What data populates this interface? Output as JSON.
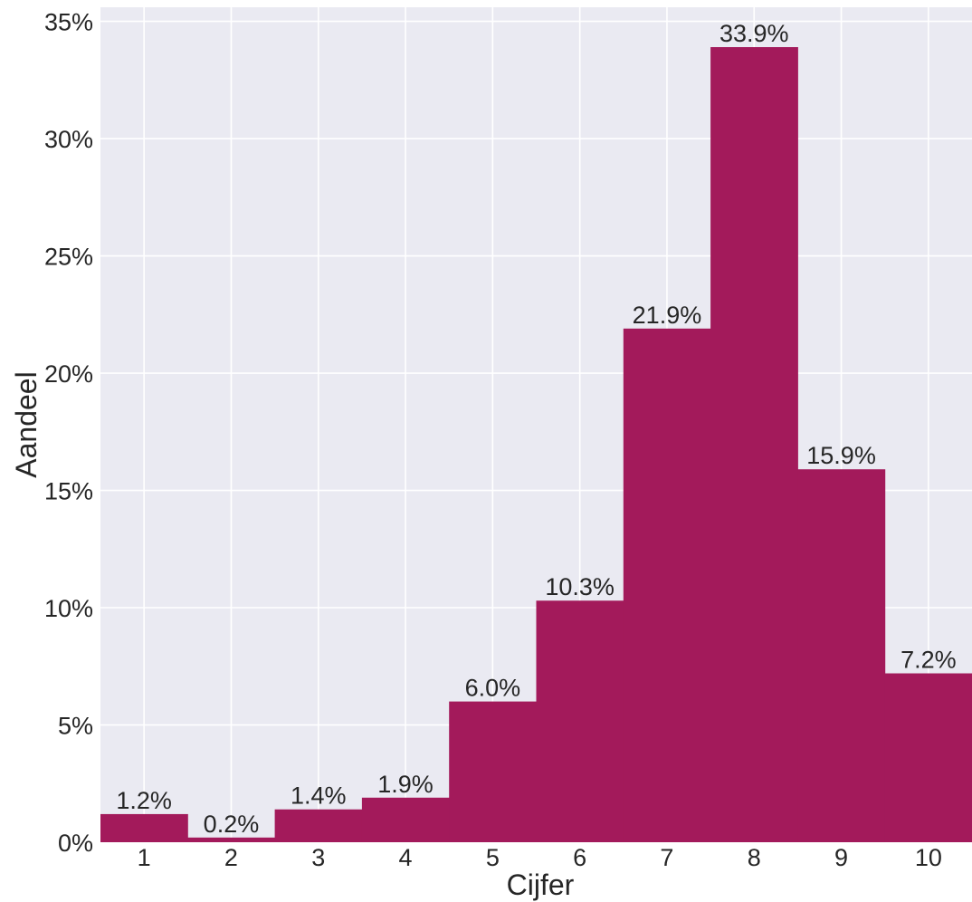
{
  "chart_data": {
    "type": "bar",
    "categories": [
      "1",
      "2",
      "3",
      "4",
      "5",
      "6",
      "7",
      "8",
      "9",
      "10"
    ],
    "values": [
      1.2,
      0.2,
      1.4,
      1.9,
      6.0,
      10.3,
      21.9,
      33.9,
      15.9,
      7.2
    ],
    "value_labels": [
      "1.2%",
      "0.2%",
      "1.4%",
      "1.9%",
      "6.0%",
      "10.3%",
      "21.9%",
      "33.9%",
      "15.9%",
      "7.2%"
    ],
    "xlabel": "Cijfer",
    "ylabel": "Aandeel",
    "ylim": [
      0,
      35.6
    ],
    "yticks": [
      0,
      5,
      10,
      15,
      20,
      25,
      30,
      35
    ],
    "ytick_labels": [
      "0%",
      "5%",
      "10%",
      "15%",
      "20%",
      "25%",
      "30%",
      "35%"
    ],
    "grid": true,
    "bar_color": "#a31a5b",
    "background_color": "#eaeaf2"
  }
}
